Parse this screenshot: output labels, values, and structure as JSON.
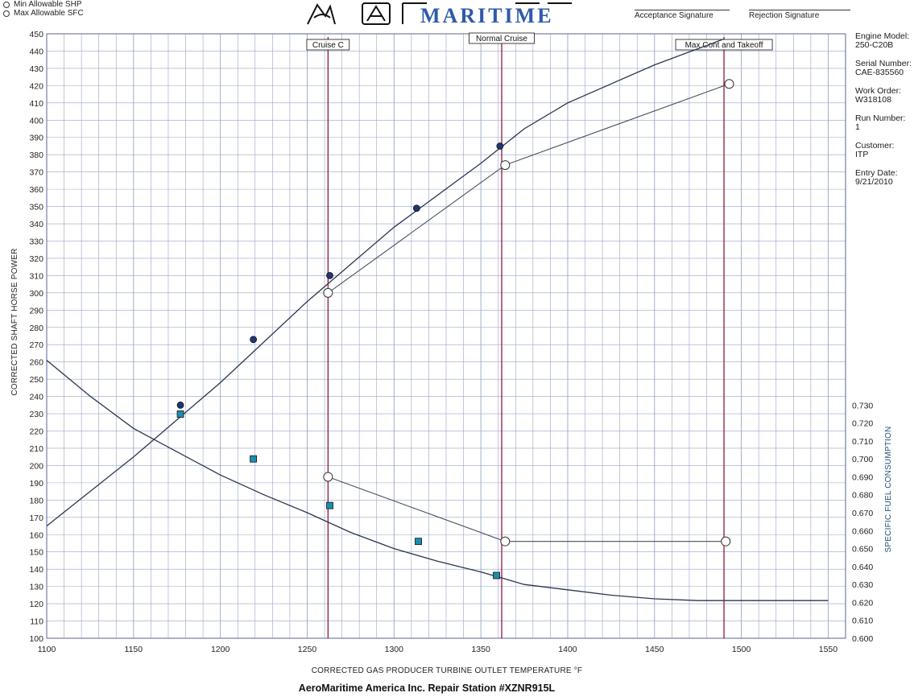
{
  "legend": {
    "items": [
      "Min Allowable SHP",
      "Max Allowable SFC"
    ]
  },
  "brand": {
    "text": "MARITIME"
  },
  "signatures": {
    "acceptance": "Acceptance Signature",
    "rejection": "Rejection Signature"
  },
  "info": [
    {
      "label": "Engine Model:",
      "value": "250-C20B"
    },
    {
      "label": "Serial Number:",
      "value": "CAE-835560"
    },
    {
      "label": "Work Order:",
      "value": "W318108"
    },
    {
      "label": "Run Number:",
      "value": "1"
    },
    {
      "label": "Customer:",
      "value": "ITP"
    },
    {
      "label": "Entry Date:",
      "value": "9/21/2010"
    }
  ],
  "footer": {
    "text": "AeroMaritime America Inc. Repair Station #XZNR915L"
  },
  "colors": {
    "shp_line": "#2b3550",
    "shp_points": "#1f3575",
    "sfc_points": "#1a8fb0",
    "markers": "#8b1a3a",
    "grid": "#9aa4c8"
  },
  "chart_data": {
    "type": "line",
    "xlabel": "CORRECTED GAS PRODUCER TURBINE OUTLET TEMPERATURE °F",
    "ylabel": "CORRECTED SHAFT HORSE POWER",
    "y2label": "SPECIFIC FUEL CONSUMPTION",
    "xlim": [
      1100,
      1560
    ],
    "ylim": [
      100,
      450
    ],
    "y2lim": [
      0.6,
      0.73
    ],
    "x_ticks": [
      1100,
      1150,
      1200,
      1250,
      1300,
      1350,
      1400,
      1450,
      1500,
      1550
    ],
    "y_ticks": [
      100,
      110,
      120,
      130,
      140,
      150,
      160,
      170,
      180,
      190,
      200,
      210,
      220,
      230,
      240,
      250,
      260,
      270,
      280,
      290,
      300,
      310,
      320,
      330,
      340,
      350,
      360,
      370,
      380,
      390,
      400,
      410,
      420,
      430,
      440,
      450
    ],
    "y2_ticks": [
      "0.600",
      "0.610",
      "0.620",
      "0.630",
      "0.640",
      "0.650",
      "0.660",
      "0.670",
      "0.680",
      "0.690",
      "0.700",
      "0.710",
      "0.720",
      "0.730"
    ],
    "grid": true,
    "markers": [
      {
        "label": "Cruise C",
        "x": 1262
      },
      {
        "label": "Normal Cruise",
        "x": 1362
      },
      {
        "label": "Max Cont and Takeoff",
        "x": 1490
      }
    ],
    "series": [
      {
        "axis": "left",
        "style": "line",
        "points": [
          [
            1100,
            165
          ],
          [
            1150,
            205
          ],
          [
            1200,
            248
          ],
          [
            1250,
            295
          ],
          [
            1300,
            338
          ],
          [
            1350,
            375
          ],
          [
            1375,
            395
          ],
          [
            1400,
            410
          ],
          [
            1450,
            432
          ],
          [
            1490,
            447
          ]
        ]
      },
      {
        "axis": "left",
        "style": "filled-circle",
        "points": [
          [
            1177,
            235
          ],
          [
            1219,
            273
          ],
          [
            1263,
            310
          ],
          [
            1313,
            349
          ],
          [
            1361,
            385
          ]
        ]
      },
      {
        "axis": "left",
        "style": "open-circle-line",
        "points": [
          [
            1262,
            300
          ],
          [
            1364,
            374
          ],
          [
            1493,
            421
          ]
        ]
      },
      {
        "axis": "right",
        "style": "line",
        "points": [
          [
            1100,
            0.755
          ],
          [
            1125,
            0.735
          ],
          [
            1150,
            0.717
          ],
          [
            1175,
            0.704
          ],
          [
            1200,
            0.691
          ],
          [
            1225,
            0.68
          ],
          [
            1250,
            0.67
          ],
          [
            1275,
            0.659
          ],
          [
            1300,
            0.65
          ],
          [
            1325,
            0.643
          ],
          [
            1350,
            0.637
          ],
          [
            1375,
            0.63
          ],
          [
            1400,
            0.627
          ],
          [
            1425,
            0.624
          ],
          [
            1450,
            0.622
          ],
          [
            1475,
            0.621
          ],
          [
            1500,
            0.621
          ],
          [
            1525,
            0.621
          ],
          [
            1550,
            0.621
          ]
        ]
      },
      {
        "axis": "right",
        "style": "filled-square",
        "points": [
          [
            1177,
            0.725
          ],
          [
            1219,
            0.7
          ],
          [
            1263,
            0.674
          ],
          [
            1314,
            0.654
          ],
          [
            1359,
            0.635
          ]
        ]
      },
      {
        "axis": "right",
        "style": "open-circle-line",
        "points": [
          [
            1262,
            0.69
          ],
          [
            1364,
            0.654
          ],
          [
            1491,
            0.654
          ]
        ]
      }
    ]
  }
}
